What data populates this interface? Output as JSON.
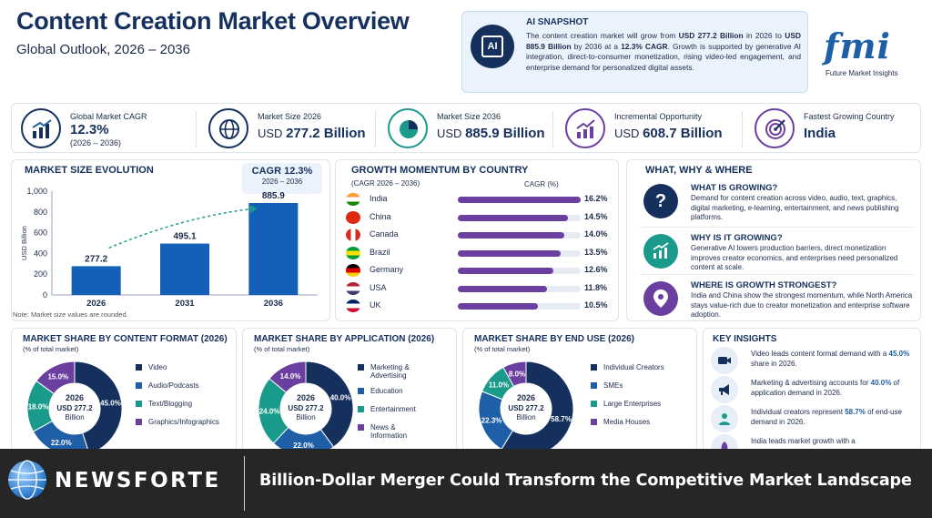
{
  "header": {
    "title": "Content Creation Market Overview",
    "subtitle": "Global Outlook, 2026 – 2036"
  },
  "ai_snapshot": {
    "title": "AI SNAPSHOT",
    "icon": "ai-chip-icon",
    "text_parts": [
      {
        "text": "The content creation market will grow from ",
        "bold": false
      },
      {
        "text": "USD 277.2 Billion",
        "bold": true
      },
      {
        "text": " in 2026 to ",
        "bold": false
      },
      {
        "text": "USD 885.9 Billion",
        "bold": true
      },
      {
        "text": " by 2036 at a ",
        "bold": false
      },
      {
        "text": "12.3% CAGR",
        "bold": true
      },
      {
        "text": ". Growth is supported by generative AI integration, direct-to-consumer monetization, rising video-led engagement, and enterprise demand for personalized digital assets.",
        "bold": false
      }
    ]
  },
  "logo": {
    "letters": "fmi",
    "caption": "Future Market Insights"
  },
  "kpis": [
    {
      "label": "Global Market CAGR",
      "prefix": "",
      "value": "12.3%",
      "sub": "(2026 – 2036)",
      "icon": "bar-growth-icon"
    },
    {
      "label": "Market Size 2026",
      "prefix": "USD ",
      "value": "277.2 Billion",
      "sub": "",
      "icon": "globe-icon"
    },
    {
      "label": "Market Size 2036",
      "prefix": "USD ",
      "value": "885.9 Billion",
      "sub": "",
      "icon": "pie-icon"
    },
    {
      "label": "Incremental Opportunity",
      "prefix": "USD ",
      "value": "608.7 Billion",
      "sub": "",
      "icon": "trend-up-icon"
    },
    {
      "label": "Fastest Growing Country",
      "prefix": "",
      "value": "India",
      "sub": "",
      "icon": "target-icon"
    }
  ],
  "market_size_evolution": {
    "title": "MARKET SIZE EVOLUTION",
    "badge_title": "CAGR 12.3%",
    "badge_sub": "2026 – 2036",
    "note": "Note: Market size values are rounded."
  },
  "growth_momentum": {
    "title": "GROWTH MOMENTUM BY COUNTRY",
    "sub": "(CAGR 2026 – 2036)",
    "col_head": "CAGR (%)"
  },
  "what_why_where": {
    "title": "WHAT, WHY & WHERE",
    "items": [
      {
        "head": "WHAT IS GROWING?",
        "text": "Demand for content creation across video, audio, text, graphics, digital marketing, e-learning, entertainment, and news publishing platforms.",
        "icon": "question-icon",
        "color": "#16305e",
        "glyph": "?"
      },
      {
        "head": "WHY IS IT GROWING?",
        "text": "Generative AI lowers production barriers, direct monetization improves creator economics, and enterprises need personalized content at scale.",
        "icon": "growth-chart-icon",
        "color": "#1a9a8a",
        "glyph": ""
      },
      {
        "head": "WHERE IS GROWTH STRONGEST?",
        "text": "India and China show the strongest momentum, while North America stays value-rich due to creator monetization and enterprise software adoption.",
        "icon": "location-pin-icon",
        "color": "#6b3fa0",
        "glyph": ""
      }
    ]
  },
  "donuts": [
    {
      "title": "MARKET SHARE BY CONTENT FORMAT (2026)",
      "sub": "(% of total market)",
      "center_year": "2026",
      "center_value": "USD 277.2",
      "center_unit": "Billion",
      "legend": [
        "Video",
        "Audio/Podcasts",
        "Text/Blogging",
        "Graphics/Infographics"
      ]
    },
    {
      "title": "MARKET SHARE BY APPLICATION (2026)",
      "sub": "(% of total market)",
      "center_year": "2026",
      "center_value": "USD 277.2",
      "center_unit": "Billion",
      "legend": [
        "Marketing & Advertising",
        "Education",
        "Entertainment",
        "News & Information"
      ]
    },
    {
      "title": "MARKET SHARE BY END USE (2026)",
      "sub": "(% of total market)",
      "center_year": "2026",
      "center_value": "USD 277.2",
      "center_unit": "Billion",
      "legend": [
        "Individual Creators",
        "SMEs",
        "Large Enterprises",
        "Media Houses"
      ]
    }
  ],
  "key_insights": {
    "title": "KEY INSIGHTS",
    "items": [
      {
        "parts": [
          {
            "text": "Video leads content format demand with a ",
            "bold": false
          },
          {
            "text": "45.0%",
            "bold": true
          },
          {
            "text": " share in 2026.",
            "bold": false
          }
        ],
        "icon": "video-camera-icon"
      },
      {
        "parts": [
          {
            "text": "Marketing & advertising accounts for ",
            "bold": false
          },
          {
            "text": "40.0%",
            "bold": true
          },
          {
            "text": " of application demand in 2026.",
            "bold": false
          }
        ],
        "icon": "megaphone-icon"
      },
      {
        "parts": [
          {
            "text": "Individual creators represent ",
            "bold": false
          },
          {
            "text": "58.7%",
            "bold": true
          },
          {
            "text": " of end-use demand in 2026.",
            "bold": false
          }
        ],
        "icon": "person-icon"
      },
      {
        "parts": [
          {
            "text": "India leads market growth with a",
            "bold": false
          }
        ],
        "icon": "rocket-icon"
      }
    ]
  },
  "footer": {
    "brand": "NEWSFORTE",
    "headline": "Billion-Dollar Merger Could Transform the Competitive Market Landscape"
  },
  "colors": {
    "navy": "#16305e",
    "blue": "#1f5fa8",
    "teal": "#1a9a8a",
    "purple": "#6b3fa0",
    "footer_bg": "#262626"
  },
  "chart_data": [
    {
      "type": "bar",
      "categories": [
        "2026",
        "2031",
        "2036"
      ],
      "values": [
        277.2,
        495.1,
        885.9
      ],
      "ylabel": "USD Billion",
      "ylim": [
        0,
        1000
      ],
      "yticks": [
        0,
        200,
        400,
        600,
        800,
        1000
      ],
      "ytick_labels": [
        "0",
        "200",
        "400",
        "600",
        "800",
        "1,000"
      ],
      "data_labels": [
        "277.2",
        "495.1",
        "885.9"
      ],
      "trend_arrow": true,
      "grid": false
    },
    {
      "type": "bar",
      "orientation": "horizontal",
      "categories": [
        "India",
        "China",
        "Canada",
        "Brazil",
        "Germany",
        "USA",
        "UK"
      ],
      "values": [
        16.2,
        14.5,
        14.0,
        13.5,
        12.6,
        11.8,
        10.5
      ],
      "data_labels": [
        "16.2%",
        "14.5%",
        "14.0%",
        "13.5%",
        "12.6%",
        "11.8%",
        "10.5%"
      ]
    },
    {
      "type": "pie",
      "categories": [
        "Video",
        "Audio/Podcasts",
        "Text/Blogging",
        "Graphics/Infographics"
      ],
      "values": [
        45.0,
        22.0,
        18.0,
        15.0
      ],
      "data_labels": [
        "45.0%",
        "22.0%",
        "18.0%",
        "15.0%"
      ],
      "colors": [
        "#16305e",
        "#1f5fa8",
        "#1a9a8a",
        "#6b3fa0"
      ]
    },
    {
      "type": "pie",
      "categories": [
        "Marketing & Advertising",
        "Education",
        "Entertainment",
        "News & Information"
      ],
      "values": [
        40.0,
        22.0,
        24.0,
        14.0
      ],
      "data_labels": [
        "40.0%",
        "22.0%",
        "24.0%",
        "14.0%"
      ],
      "colors": [
        "#16305e",
        "#1f5fa8",
        "#1a9a8a",
        "#6b3fa0"
      ]
    },
    {
      "type": "pie",
      "categories": [
        "Individual Creators",
        "SMEs",
        "Large Enterprises",
        "Media Houses"
      ],
      "values": [
        58.7,
        22.3,
        11.0,
        8.0
      ],
      "data_labels": [
        "58.7%",
        "22.3%",
        "11.0%",
        "8.0%"
      ],
      "colors": [
        "#16305e",
        "#1f5fa8",
        "#1a9a8a",
        "#6b3fa0"
      ]
    }
  ]
}
